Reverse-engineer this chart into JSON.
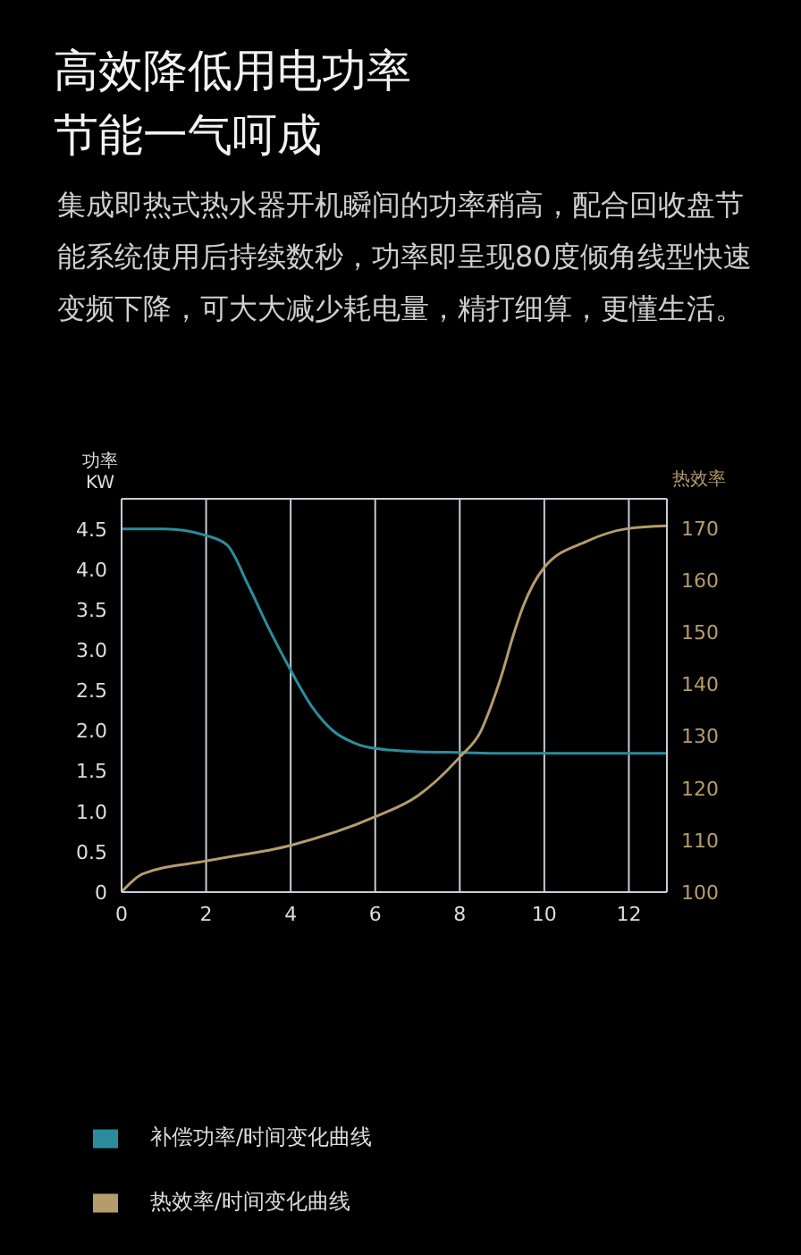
{
  "chart_data": {
    "type": "line",
    "title": "高效降低用电功率节能一气呵成",
    "subtitle": "集成即热式热水器开机瞬间的功率稍高，配合回收盘节能系统使用后持续数秒，功率即呈现80度倾角线型快速变频下降，可大大减少耗电量，精打细算，更懂生活。",
    "ylabel": "功率\nKW",
    "y2label": "热效率",
    "xlim": [
      0,
      12.9
    ],
    "xticks": [
      0,
      2,
      4,
      6,
      8,
      10,
      12
    ],
    "ylim": [
      0,
      4.875
    ],
    "yticks": [
      0,
      {
        "value": 0.5,
        "label": "0.5"
      },
      {
        "value": 1,
        "label": "1.0"
      },
      {
        "value": 1.5,
        "label": "1.5"
      },
      {
        "value": 2,
        "label": "2.0"
      },
      {
        "value": 2.5,
        "label": "2.5"
      },
      {
        "value": 3,
        "label": "3.0"
      },
      {
        "value": 3.5,
        "label": "3.5"
      },
      {
        "value": 4,
        "label": "4.0"
      },
      {
        "value": 4.5,
        "label": "4.5"
      }
    ],
    "y2lim": [
      100,
      175.7
    ],
    "y2ticks": [
      100,
      110,
      120,
      130,
      140,
      150,
      160,
      170
    ],
    "grid": true,
    "legend": "bottom",
    "marker": "none",
    "line_style": "solid",
    "series": [
      {
        "name": "补偿功率/时间变化曲线",
        "color": "#2b8d9c",
        "x": [
          0,
          1,
          2,
          2.5,
          3,
          3.5,
          4,
          4.5,
          5,
          5.5,
          6,
          7,
          8,
          9,
          10,
          12.9
        ],
        "values": [
          4.5,
          4.5,
          4.42,
          4.3,
          3.8,
          3.25,
          2.75,
          2.3,
          2.0,
          1.85,
          1.78,
          1.74,
          1.73,
          1.72,
          1.72,
          1.72
        ]
      },
      {
        "name": "热效率/时间变化曲线",
        "color": "#b59c6c",
        "axis": "y2",
        "x": [
          0,
          0.5,
          2,
          4,
          6,
          7,
          8,
          8.5,
          8.75,
          9,
          9.25,
          9.5,
          10,
          11,
          12,
          12.9
        ],
        "values": [
          100,
          103.5,
          106,
          109,
          114.5,
          118.5,
          126,
          131,
          136,
          142,
          149,
          155,
          162.5,
          167.5,
          170,
          170.5
        ]
      }
    ]
  }
}
